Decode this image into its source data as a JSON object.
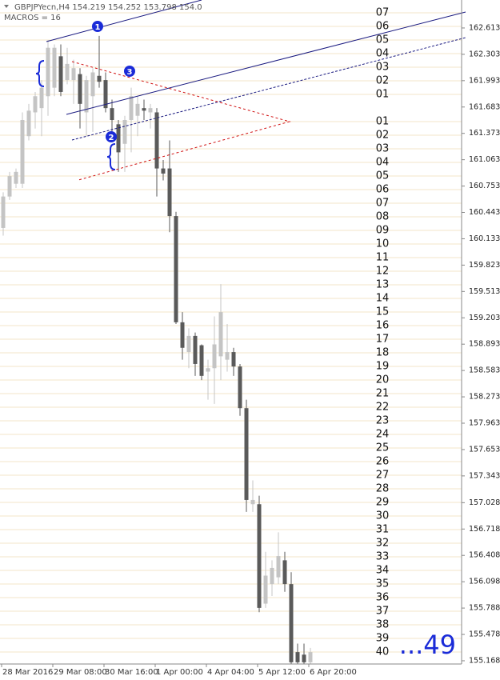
{
  "chart_data": {
    "type": "candlestick",
    "title": "GBPJPYecn,H4  154.219 154.252 153.798 154.0",
    "subtitle": "MACROS = 16",
    "up_color": "#c4c4c4",
    "down_color": "#5a5a5a",
    "ylim": [
      155.13,
      162.942
    ],
    "yticks": [
      162.613,
      162.303,
      161.993,
      161.683,
      161.373,
      161.063,
      160.753,
      160.443,
      160.133,
      159.823,
      159.513,
      159.203,
      158.893,
      158.583,
      158.273,
      157.963,
      157.653,
      157.343,
      157.028,
      156.718,
      156.408,
      156.098,
      155.788,
      155.478,
      155.168
    ],
    "categories": [
      "28 Mar 2016",
      null,
      null,
      null,
      null,
      null,
      null,
      null,
      "29 Mar 08:00",
      null,
      null,
      null,
      null,
      null,
      null,
      null,
      "30 Mar 16:00",
      null,
      null,
      null,
      null,
      null,
      null,
      null,
      "1 Apr 00:00",
      null,
      null,
      null,
      null,
      null,
      null,
      null,
      "4 Apr 04:00",
      null,
      null,
      null,
      null,
      null,
      null,
      null,
      "5 Apr 12:00",
      null,
      null,
      null,
      null,
      null,
      null,
      null,
      "6 Apr 20:00"
    ],
    "open": [
      160.26,
      160.63,
      160.78,
      160.78,
      161.34,
      161.62,
      161.67,
      161.81,
      161.91,
      162.28,
      162.0,
      162.0,
      162.07,
      161.62,
      161.81,
      162.05,
      162.0,
      161.67,
      161.48,
      161.25,
      161.53,
      161.58,
      161.67,
      161.62,
      161.62,
      160.96,
      160.96,
      160.4,
      159.15,
      158.8,
      158.99,
      158.88,
      158.57,
      158.61,
      158.75,
      158.71,
      158.8,
      158.63,
      158.14,
      157.01,
      157.01,
      155.84,
      156.07,
      156.15,
      156.35,
      156.07,
      155.27,
      155.24,
      155.15
    ],
    "high": [
      160.68,
      160.92,
      160.96,
      161.62,
      161.72,
      161.86,
      162.0,
      162.47,
      162.42,
      162.42,
      162.38,
      162.24,
      162.14,
      162.05,
      162.14,
      162.52,
      162.09,
      161.77,
      161.53,
      161.58,
      161.91,
      161.81,
      161.77,
      161.72,
      161.67,
      161.06,
      161.29,
      160.45,
      159.27,
      159.08,
      159.03,
      158.89,
      158.71,
      159.22,
      159.6,
      159.13,
      158.85,
      158.66,
      158.24,
      157.29,
      157.11,
      156.45,
      156.35,
      156.68,
      156.45,
      156.21,
      155.37,
      155.37,
      155.32
    ],
    "low": [
      160.17,
      160.59,
      160.73,
      160.73,
      161.29,
      161.43,
      161.34,
      161.58,
      161.81,
      161.81,
      161.95,
      161.72,
      161.43,
      161.34,
      161.39,
      161.91,
      161.62,
      161.39,
      160.92,
      160.92,
      161.15,
      161.34,
      161.53,
      161.43,
      160.63,
      160.82,
      160.21,
      159.13,
      158.71,
      158.61,
      158.52,
      158.47,
      158.24,
      158.19,
      158.47,
      158.57,
      158.52,
      158.05,
      156.92,
      156.92,
      155.74,
      155.79,
      155.93,
      156.07,
      155.98,
      155.13,
      155.13,
      155.13,
      155.13
    ],
    "close": [
      160.63,
      160.87,
      160.92,
      161.53,
      161.64,
      161.81,
      161.91,
      162.38,
      162.38,
      161.86,
      162.19,
      162.14,
      161.72,
      162.0,
      162.09,
      161.98,
      161.67,
      161.53,
      161.15,
      161.53,
      161.81,
      161.72,
      161.64,
      161.67,
      160.96,
      160.9,
      160.4,
      159.15,
      158.85,
      158.99,
      158.66,
      158.52,
      158.61,
      158.89,
      159.27,
      158.8,
      158.63,
      158.14,
      157.06,
      157.06,
      155.79,
      156.17,
      156.26,
      156.4,
      156.07,
      155.15,
      155.15,
      155.15,
      155.27
    ],
    "upper_levels": [
      {
        "value": 161.831,
        "label": "01"
      },
      {
        "value": 161.991,
        "label": "02"
      },
      {
        "value": 162.151,
        "label": "03"
      },
      {
        "value": 162.311,
        "label": "04"
      },
      {
        "value": 162.471,
        "label": "05"
      },
      {
        "value": 162.631,
        "label": "06"
      },
      {
        "value": 162.791,
        "label": "07"
      }
    ],
    "lower_levels": [
      {
        "value": 161.511,
        "label": "01"
      },
      {
        "value": 161.351,
        "label": "02"
      },
      {
        "value": 161.191,
        "label": "03"
      },
      {
        "value": 161.031,
        "label": "04"
      },
      {
        "value": 160.871,
        "label": "05"
      },
      {
        "value": 160.711,
        "label": "06"
      },
      {
        "value": 160.551,
        "label": "07"
      },
      {
        "value": 160.391,
        "label": "08"
      },
      {
        "value": 160.231,
        "label": "09"
      },
      {
        "value": 160.071,
        "label": "10"
      },
      {
        "value": 159.911,
        "label": "11"
      },
      {
        "value": 159.751,
        "label": "12"
      },
      {
        "value": 159.591,
        "label": "13"
      },
      {
        "value": 159.431,
        "label": "14"
      },
      {
        "value": 159.271,
        "label": "15"
      },
      {
        "value": 159.111,
        "label": "16"
      },
      {
        "value": 158.951,
        "label": "17"
      },
      {
        "value": 158.791,
        "label": "18"
      },
      {
        "value": 158.631,
        "label": "19"
      },
      {
        "value": 158.471,
        "label": "20"
      },
      {
        "value": 158.311,
        "label": "21"
      },
      {
        "value": 158.151,
        "label": "22"
      },
      {
        "value": 157.991,
        "label": "23"
      },
      {
        "value": 157.831,
        "label": "24"
      },
      {
        "value": 157.671,
        "label": "25"
      },
      {
        "value": 157.511,
        "label": "26"
      },
      {
        "value": 157.351,
        "label": "27"
      },
      {
        "value": 157.191,
        "label": "28"
      },
      {
        "value": 157.031,
        "label": "29"
      },
      {
        "value": 156.871,
        "label": "30"
      },
      {
        "value": 156.711,
        "label": "31"
      },
      {
        "value": 156.551,
        "label": "32"
      },
      {
        "value": 156.391,
        "label": "33"
      },
      {
        "value": 156.231,
        "label": "34"
      },
      {
        "value": 156.071,
        "label": "35"
      },
      {
        "value": 155.911,
        "label": "36"
      },
      {
        "value": 155.751,
        "label": "37"
      },
      {
        "value": 155.591,
        "label": "38"
      },
      {
        "value": 155.431,
        "label": "39"
      },
      {
        "value": 155.271,
        "label": "40"
      }
    ],
    "markers": [
      "1",
      "2",
      "3"
    ],
    "annotation": "...49"
  }
}
